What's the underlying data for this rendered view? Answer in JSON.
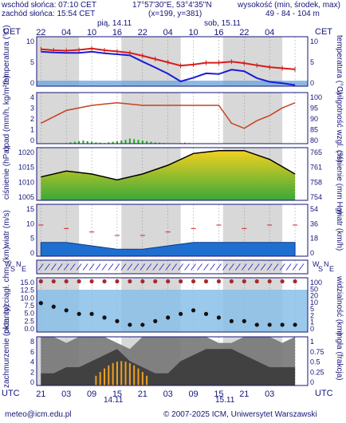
{
  "header": {
    "sunrise": "wschód słońca: 07:10 CET",
    "sunset": "zachód słońca: 15:54 CET",
    "coords": "17°57'30\"E, 53°4'35\"N",
    "grid": "(x=199, y=381)",
    "elevation_title": "wysokość (min, środek, max)",
    "elevation_values": "49 - 84 - 104 m"
  },
  "top_axis": {
    "tz_left": "CET",
    "tz_right": "CET",
    "day1": "pią, 14.11",
    "day2": "sob, 15.11",
    "hours": [
      "22",
      "04",
      "10",
      "16",
      "22",
      "04",
      "10",
      "16",
      "22",
      "04"
    ]
  },
  "bottom_axis": {
    "tz_left": "UTC",
    "tz_right": "UTC",
    "hours": [
      "21",
      "03",
      "09",
      "15",
      "21",
      "03",
      "09",
      "15",
      "21",
      "03"
    ],
    "day1": "14.11",
    "day2": "15.11"
  },
  "footer": {
    "email": "meteo@icm.edu.pl",
    "copyright": "© 2007-2025 ICM, Uniwersytet Warszawski"
  },
  "panels": {
    "temperature": {
      "left_label": "temperatura",
      "left_unit": "(°C)",
      "right_label": "temperatura",
      "right_unit": "(°C)",
      "left_ticks": [
        "10",
        "5",
        "0"
      ],
      "right_ticks": [
        "10",
        "5",
        "0"
      ]
    },
    "precip": {
      "left_label": "opad",
      "left_unit": "(mm/h, kg/m²/h)",
      "right_label": "wilgotność wzgl.",
      "right_unit": "(%)",
      "left_ticks": [
        "4",
        "3",
        "2",
        "1",
        "0"
      ],
      "right_ticks": [
        "100",
        "95",
        "90",
        "85",
        "80"
      ]
    },
    "pressure": {
      "left_label": "ciśnienie",
      "left_unit": "(hPa)",
      "right_label": "ciśnienie",
      "right_unit": "(mm Hg)",
      "left_ticks": [
        "1020",
        "1015",
        "1010",
        "1005"
      ],
      "right_ticks": [
        "765",
        "761",
        "758",
        "754"
      ]
    },
    "wind": {
      "left_label": "wiatr",
      "left_unit": "(m/s)",
      "right_label": "wiatr",
      "right_unit": "(km/h)",
      "left_ticks": [
        "15",
        "10",
        "5",
        "0"
      ],
      "right_ticks": [
        "54",
        "36",
        "18",
        "0"
      ]
    },
    "winddir": {
      "left_letters": "W S N E",
      "right_letters": "W S N E"
    },
    "visibility": {
      "left_label": "pion. rozciągł. chm.",
      "left_unit": "(km)",
      "right_label": "widzialność",
      "right_unit": "(km)",
      "left_ticks": [
        "15.0",
        "12.5",
        "10.0",
        "7.5",
        "5.0",
        "2.5",
        "0.0"
      ],
      "right_ticks": [
        "100",
        "50",
        "20",
        "10",
        "5",
        "2",
        "1",
        "0"
      ]
    },
    "clouds": {
      "left_label": "zachmurzenie",
      "left_unit": "(oktanty)",
      "right_label": "(frakcja)",
      "right_unit": "mgła",
      "left_ticks": [
        "8",
        "6",
        "4",
        "2",
        "0"
      ],
      "right_ticks": [
        "1",
        "0.75",
        "0.5",
        "0.25",
        "0"
      ]
    }
  },
  "chart_data": [
    {
      "type": "line",
      "panel": "temperature",
      "x_hours_utc": [
        21,
        24,
        27,
        30,
        33,
        36,
        39,
        42,
        45,
        48,
        51,
        54,
        57,
        60,
        63,
        66,
        69,
        72,
        75,
        78,
        81
      ],
      "series": [
        {
          "values": [
            7.9,
            7.7,
            7.6,
            7.6,
            7.9,
            7.5,
            7.2,
            6.9,
            5.2,
            3.6,
            1.9,
            -0.2,
            0.8,
            2.0,
            1.8,
            3.0,
            2.6,
            0.7,
            -0.3,
            -0.7,
            -1.2
          ]
        },
        {
          "values": [
            8.6,
            8.3,
            8.2,
            8.4,
            8.8,
            8.3,
            8.0,
            7.6,
            6.8,
            5.9,
            5.0,
            4.1,
            4.4,
            4.9,
            4.9,
            5.2,
            4.8,
            4.2,
            3.7,
            3.4,
            3.1
          ]
        }
      ],
      "ylim": [
        -1.5,
        12
      ]
    },
    {
      "type": "bar",
      "panel": "precip-amount",
      "x_hours_utc": [
        27,
        28,
        29,
        30,
        31,
        32,
        33,
        34,
        35,
        36,
        37,
        38,
        39,
        40,
        41,
        42,
        43,
        44,
        45,
        46,
        47,
        48,
        49,
        50,
        51,
        52,
        53,
        54,
        55,
        56
      ],
      "values": [
        0.05,
        0.1,
        0.15,
        0.2,
        0.25,
        0.2,
        0.15,
        0.1,
        0.08,
        0.05,
        0.1,
        0.15,
        0.2,
        0.25,
        0.3,
        0.4,
        0.35,
        0.3,
        0.25,
        0.2,
        0.15,
        0.1,
        0.08,
        0.05,
        0.04,
        0.03,
        0.02,
        0.05,
        0.08,
        0.05
      ],
      "ylim": [
        0,
        4
      ]
    },
    {
      "type": "line",
      "panel": "humidity",
      "x_hours_utc": [
        21,
        27,
        33,
        39,
        45,
        51,
        57,
        63,
        66,
        69,
        72,
        75,
        78,
        81
      ],
      "values": [
        88,
        93,
        95,
        96,
        95,
        95,
        95,
        95,
        88,
        86,
        89,
        91,
        94,
        96
      ],
      "ylim": [
        80,
        100
      ]
    },
    {
      "type": "area",
      "panel": "pressure",
      "x_hours_utc": [
        21,
        27,
        33,
        39,
        45,
        51,
        57,
        63,
        69,
        75,
        81
      ],
      "values": [
        1010,
        1012,
        1011,
        1009,
        1011,
        1014,
        1018,
        1019,
        1019,
        1016,
        1011
      ],
      "ylim": [
        1002,
        1020
      ]
    },
    {
      "type": "area",
      "panel": "wind",
      "x_hours_utc": [
        21,
        27,
        33,
        39,
        45,
        51,
        57,
        63,
        69,
        75,
        81
      ],
      "series": [
        {
          "values": [
            4,
            4,
            3,
            2,
            2,
            3,
            4,
            4,
            4,
            4,
            4
          ]
        },
        {
          "values": [
            9,
            8,
            7,
            6,
            6,
            7,
            8,
            9,
            8,
            9,
            9
          ]
        }
      ],
      "ylim": [
        0,
        15
      ]
    },
    {
      "type": "scatter",
      "panel": "visibility",
      "x_hours_utc": [
        21,
        24,
        27,
        30,
        33,
        36,
        39,
        42,
        45,
        48,
        51,
        54,
        57,
        60,
        63,
        66,
        69,
        72,
        75,
        78,
        81
      ],
      "series": [
        {
          "values": [
            14,
            14,
            14,
            14,
            14,
            14,
            14,
            14,
            14,
            14,
            14,
            14,
            14,
            14,
            14,
            14,
            14,
            14,
            14,
            14,
            14
          ]
        },
        {
          "values": [
            8,
            7,
            6,
            5,
            5,
            4,
            3,
            2,
            2,
            3,
            4,
            5,
            6,
            5,
            4,
            3,
            3,
            2,
            2,
            2,
            2
          ]
        }
      ],
      "ylim": [
        0,
        15
      ]
    },
    {
      "type": "area",
      "panel": "clouds",
      "x_hours_utc": [
        21,
        24,
        27,
        30,
        33,
        36,
        39,
        42,
        45,
        48,
        51,
        54,
        57,
        60,
        63,
        66,
        69,
        72,
        75,
        78,
        81
      ],
      "series": [
        {
          "values": [
            8,
            8,
            7,
            8,
            8,
            8,
            7,
            6,
            8,
            8,
            8,
            8,
            8,
            8,
            7,
            7,
            8,
            8,
            8,
            7,
            8
          ]
        },
        {
          "values": [
            2,
            2,
            3,
            3,
            4,
            5,
            6,
            4,
            3,
            2,
            2,
            4,
            5,
            6,
            6,
            6,
            5,
            4,
            3,
            3,
            3
          ]
        }
      ],
      "ylim": [
        0,
        8
      ]
    }
  ]
}
